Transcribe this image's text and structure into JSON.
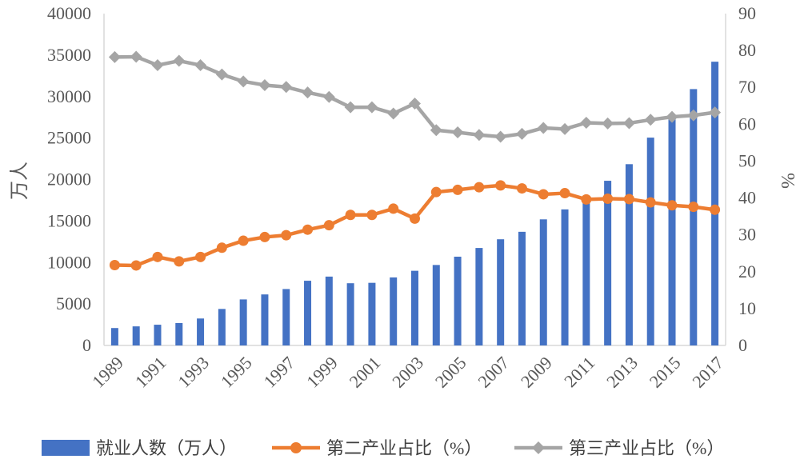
{
  "chart_data": {
    "type": "bar",
    "x": [
      1989,
      1990,
      1991,
      1992,
      1993,
      1994,
      1995,
      1996,
      1997,
      1998,
      1999,
      2000,
      2001,
      2002,
      2003,
      2004,
      2005,
      2006,
      2007,
      2008,
      2009,
      2010,
      2011,
      2012,
      2013,
      2014,
      2015,
      2016,
      2017
    ],
    "x_tick_labels": [
      "1989",
      "1991",
      "1993",
      "1995",
      "1997",
      "1999",
      "2001",
      "2003",
      "2005",
      "2007",
      "2009",
      "2011",
      "2013",
      "2015",
      "2017"
    ],
    "series": [
      {
        "name": "就业人数（万人）",
        "type": "bar",
        "axis": "left",
        "color": "#4472C4",
        "values": [
          2100,
          2300,
          2500,
          2700,
          3250,
          4400,
          5550,
          6150,
          6800,
          7800,
          8300,
          7500,
          7550,
          8200,
          9000,
          9700,
          10700,
          11750,
          12800,
          13700,
          15200,
          16400,
          17550,
          19850,
          21850,
          25050,
          27850,
          30900,
          34200
        ]
      },
      {
        "name": "第二产业占比（%）",
        "type": "line",
        "marker": "circle",
        "axis": "right",
        "color": "#ED7D31",
        "values": [
          21.8,
          21.7,
          24.0,
          22.8,
          24.0,
          26.5,
          28.4,
          29.4,
          29.9,
          31.4,
          32.6,
          35.4,
          35.4,
          37.1,
          34.4,
          41.6,
          42.2,
          42.9,
          43.4,
          42.6,
          41.0,
          41.3,
          39.6,
          39.8,
          39.7,
          38.8,
          38.0,
          37.6,
          36.8
        ]
      },
      {
        "name": "第三产业占比（%）",
        "type": "line",
        "marker": "diamond",
        "axis": "right",
        "color": "#A5A5A5",
        "values": [
          78.2,
          78.3,
          76.0,
          77.2,
          76.0,
          73.5,
          71.6,
          70.6,
          70.1,
          68.6,
          67.4,
          64.6,
          64.6,
          62.9,
          65.6,
          58.4,
          57.8,
          57.1,
          56.6,
          57.4,
          59.0,
          58.7,
          60.4,
          60.2,
          60.3,
          61.2,
          62.0,
          62.4,
          63.2
        ]
      }
    ],
    "y_left": {
      "label": "万人",
      "ticks": [
        "0",
        "5000",
        "10000",
        "15000",
        "20000",
        "25000",
        "30000",
        "35000",
        "40000"
      ],
      "lim": [
        0,
        40000
      ]
    },
    "y_right": {
      "label": "%",
      "ticks": [
        "0",
        "10",
        "20",
        "30",
        "40",
        "50",
        "60",
        "70",
        "80",
        "90"
      ],
      "lim": [
        0,
        90
      ]
    },
    "grid": "none",
    "legend": "bottom",
    "colors": {
      "axis": "#D9D9D9",
      "text": "#595959"
    }
  }
}
